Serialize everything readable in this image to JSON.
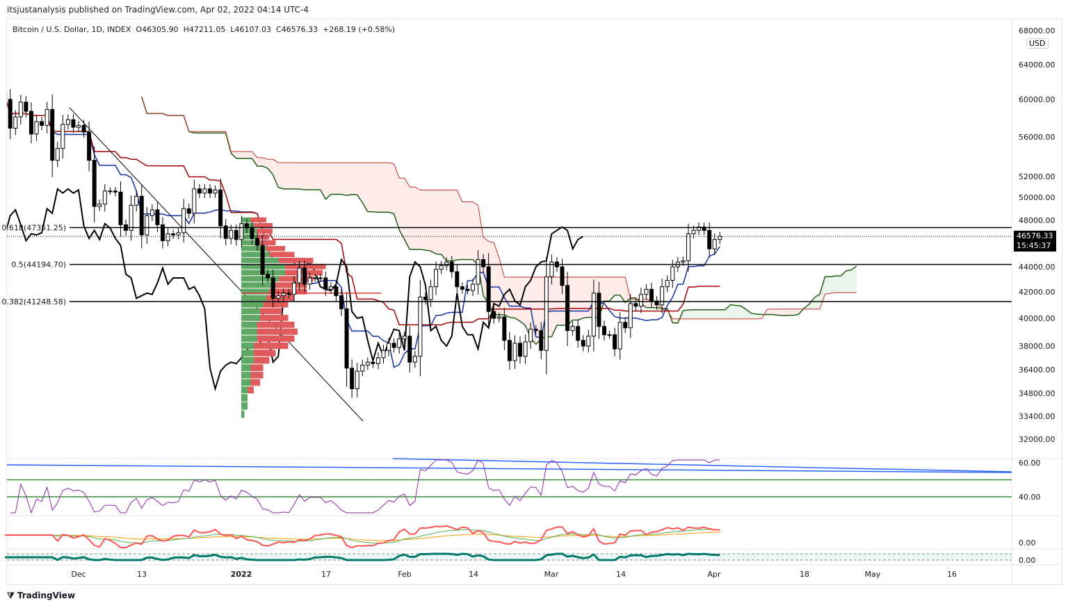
{
  "header": {
    "published": "itsjustanalysis published on TradingView.com, Apr 02, 2022 04:14 UTC-4",
    "symbol": "Bitcoin / U.S. Dollar, 1D, INDEX",
    "open": "O46305.90",
    "high": "H47211.05",
    "low": "L46107.03",
    "close": "C46576.33",
    "change": "+268.19 (+0.58%)"
  },
  "currency": "USD",
  "last_price": {
    "value": "46576.33",
    "countdown": "15:45:37"
  },
  "brand": "TradingView",
  "colors": {
    "up": "#ffffff",
    "down": "#000000",
    "tenkan": "#0d2fa8",
    "kijun": "#a50000",
    "spanA": "#1f5e14",
    "spanB": "#c0312b",
    "chikou": "#000000",
    "rsi": "#8e24aa",
    "vp_up": "#5fa866",
    "vp_down": "#e05b5b"
  },
  "chart_data": {
    "type": "candlestick",
    "title": "Bitcoin / U.S. Dollar, 1D, INDEX",
    "start_date": "2021-11-17",
    "closes": [
      60000,
      56900,
      58100,
      59700,
      58700,
      56300,
      57600,
      57200,
      58900,
      53600,
      54800,
      57300,
      57800,
      57000,
      57200,
      56500,
      53600,
      49200,
      49400,
      50600,
      50600,
      50500,
      47600,
      47100,
      49300,
      50100,
      46700,
      48400,
      48900,
      47600,
      46200,
      46800,
      46700,
      46900,
      49000,
      48600,
      50800,
      50400,
      50800,
      50400,
      50700,
      47500,
      46400,
      47100,
      46300,
      47700,
      47300,
      46400,
      45800,
      43400,
      43100,
      41500,
      41700,
      41900,
      41800,
      42700,
      43900,
      42600,
      43100,
      43100,
      43100,
      42200,
      42400,
      41700,
      40700,
      36500,
      35100,
      36300,
      36700,
      36900,
      36800,
      37200,
      37700,
      38200,
      37900,
      38500,
      38700,
      36900,
      37300,
      41600,
      41400,
      42400,
      43800,
      44100,
      44400,
      43600,
      42400,
      42200,
      42100,
      42600,
      44600,
      44000,
      40500,
      40000,
      40100,
      38400,
      37000,
      38200,
      37300,
      38300,
      39200,
      39100,
      37700,
      43200,
      44400,
      44000,
      42500,
      39100,
      39400,
      38400,
      38000,
      38700,
      41900,
      39400,
      38800,
      38800,
      37800,
      39700,
      39300,
      41100,
      40900,
      41800,
      42200,
      41300,
      41000,
      42400,
      42900,
      44000,
      44400,
      44500,
      46800,
      47100,
      47400,
      47100,
      45500,
      46306,
      46576
    ],
    "y_ticks": [
      68000,
      64000,
      60000,
      56000,
      52000,
      50000,
      48000,
      44000,
      42000,
      40000,
      38000,
      36400,
      34800,
      33400,
      32000
    ],
    "y_tick_labels": [
      "68000.00",
      "64000.00",
      "60000.00",
      "56000.00",
      "52000.00",
      "50000.00",
      "48000.00",
      "44000.00",
      "42000.00",
      "40000.00",
      "38000.00",
      "36400.00",
      "34800.00",
      "33400.00",
      "32000.00"
    ],
    "x_ticks": [
      "Dec",
      "13",
      "2022",
      "17",
      "Feb",
      "14",
      "Mar",
      "14",
      "Apr",
      "18",
      "May",
      "16"
    ],
    "fib": [
      {
        "label": "0.618(47351.25)",
        "value": 47351.25
      },
      {
        "label": "0.5(44194.70)",
        "value": 44194.7
      },
      {
        "label": "0.382(41248.58)",
        "value": 41248.58
      }
    ],
    "volume_profile": {
      "levels": [
        48000,
        47500,
        47000,
        46500,
        46000,
        45500,
        45000,
        44500,
        44000,
        43500,
        43000,
        42500,
        42000,
        41500,
        41000,
        40500,
        40000,
        39500,
        39000,
        38500,
        38000,
        37500,
        37000,
        36500,
        36000,
        35500,
        35000,
        34500,
        34000,
        33500
      ],
      "up": [
        3,
        4,
        5,
        5,
        6,
        8,
        9,
        12,
        14,
        14,
        12,
        11,
        9,
        8,
        7,
        6,
        6,
        5,
        5,
        5,
        4,
        4,
        4,
        3,
        3,
        3,
        2,
        2,
        2,
        1
      ],
      "down": [
        5,
        6,
        5,
        4,
        5,
        6,
        8,
        11,
        13,
        12,
        11,
        10,
        12,
        9,
        8,
        7,
        9,
        12,
        13,
        12,
        11,
        7,
        5,
        4,
        4,
        3,
        2,
        0,
        0,
        0
      ]
    },
    "rsi": {
      "ticks": [
        "60.00",
        "40.00"
      ],
      "levels": [
        50,
        40
      ]
    },
    "osc": {
      "ticks": [
        "0.00"
      ]
    },
    "osc2": {
      "ticks": [
        "0.00"
      ]
    }
  }
}
